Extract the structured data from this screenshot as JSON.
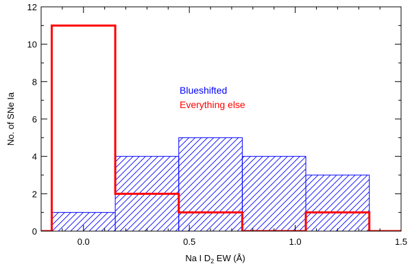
{
  "chart_data": {
    "type": "bar",
    "style": "step-histogram",
    "xlabel": "Na I D₂ EW (Å)",
    "xlabel_main": "Na I D",
    "xlabel_sub": "2",
    "xlabel_tail": " EW (Å)",
    "ylabel": "No. of SNe Ia",
    "xlim": [
      -0.2,
      1.5
    ],
    "ylim": [
      0,
      12
    ],
    "xticks": [
      0.0,
      0.5,
      1.0,
      1.5
    ],
    "xtick_labels": [
      "0.0",
      "0.5",
      "1.0",
      "1.5"
    ],
    "yticks": [
      0,
      2,
      4,
      6,
      8,
      10,
      12
    ],
    "ytick_labels": [
      "0",
      "2",
      "4",
      "6",
      "8",
      "10",
      "12"
    ],
    "bin_edges": [
      -0.15,
      0.15,
      0.45,
      0.75,
      1.05,
      1.35
    ],
    "series": [
      {
        "name": "Blueshifted",
        "color": "#0000ff",
        "fill": "hatch",
        "values": [
          1,
          4,
          5,
          4,
          3
        ]
      },
      {
        "name": "Everything else",
        "color": "#ff0000",
        "fill": "none",
        "values": [
          11,
          2,
          1,
          0,
          1
        ]
      }
    ],
    "legend": {
      "placement": "center",
      "items": [
        "Blueshifted",
        "Everything else"
      ],
      "colors": [
        "#0000ff",
        "#ff0000"
      ]
    },
    "grid": false
  }
}
